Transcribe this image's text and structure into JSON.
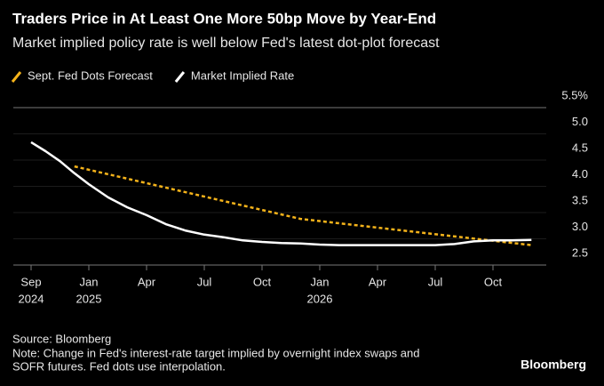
{
  "chart_data": {
    "type": "line",
    "title": "Traders Price in At Least One More 50bp Move by Year-End",
    "subtitle": "Market implied policy rate is well below Fed's latest dot-plot forecast",
    "series": [
      {
        "name": "Sept. Fed Dots Forecast",
        "color": "#f5b31a",
        "dashed": true,
        "x": [
          "2024-12",
          "2025-12",
          "2026-12"
        ],
        "values": [
          4.38,
          3.38,
          2.88
        ]
      },
      {
        "name": "Market Implied Rate",
        "color": "#ffffff",
        "dashed": false,
        "x": [
          "2024-09",
          "2024-10",
          "2024-11",
          "2024-12",
          "2025-01",
          "2025-02",
          "2025-03",
          "2025-04",
          "2025-05",
          "2025-06",
          "2025-07",
          "2025-08",
          "2025-09",
          "2025-10",
          "2025-11",
          "2025-12",
          "2026-01",
          "2026-02",
          "2026-03",
          "2026-04",
          "2026-05",
          "2026-06",
          "2026-07",
          "2026-08",
          "2026-09",
          "2026-10",
          "2026-11",
          "2026-12"
        ],
        "values": [
          4.84,
          4.67,
          4.48,
          4.25,
          4.04,
          3.79,
          3.6,
          3.45,
          3.28,
          3.16,
          3.08,
          3.03,
          2.97,
          2.94,
          2.92,
          2.91,
          2.89,
          2.88,
          2.88,
          2.88,
          2.88,
          2.88,
          2.88,
          2.9,
          2.95,
          2.97,
          2.97,
          2.98
        ]
      }
    ],
    "xticks": [
      {
        "value": "2024-09",
        "label": "Sep",
        "year": "2024"
      },
      {
        "value": "2025-01",
        "label": "Jan",
        "year": "2025"
      },
      {
        "value": "2025-04",
        "label": "Apr"
      },
      {
        "value": "2025-07",
        "label": "Jul"
      },
      {
        "value": "2025-10",
        "label": "Oct"
      },
      {
        "value": "2026-01",
        "label": "Jan",
        "year": "2026"
      },
      {
        "value": "2026-04",
        "label": "Apr"
      },
      {
        "value": "2026-07",
        "label": "Jul"
      },
      {
        "value": "2026-10",
        "label": "Oct"
      }
    ],
    "ylim": [
      2.5,
      5.5
    ],
    "yticks": [
      {
        "value": 5.5,
        "label": "5.5%"
      },
      {
        "value": 5,
        "label": "5.0"
      },
      {
        "value": 4.5,
        "label": "4.5"
      },
      {
        "value": 4,
        "label": "4.0"
      },
      {
        "value": 3.5,
        "label": "3.5"
      },
      {
        "value": 3,
        "label": "3.0"
      },
      {
        "value": 2.5,
        "label": "2.5"
      }
    ],
    "grid": true,
    "source": "Source: Bloomberg",
    "note": [
      "Note: Change in Fed's interest-rate target implied by overnight index swaps and",
      "SOFR futures. Fed dots use interpolation."
    ],
    "brand": "Bloomberg"
  }
}
